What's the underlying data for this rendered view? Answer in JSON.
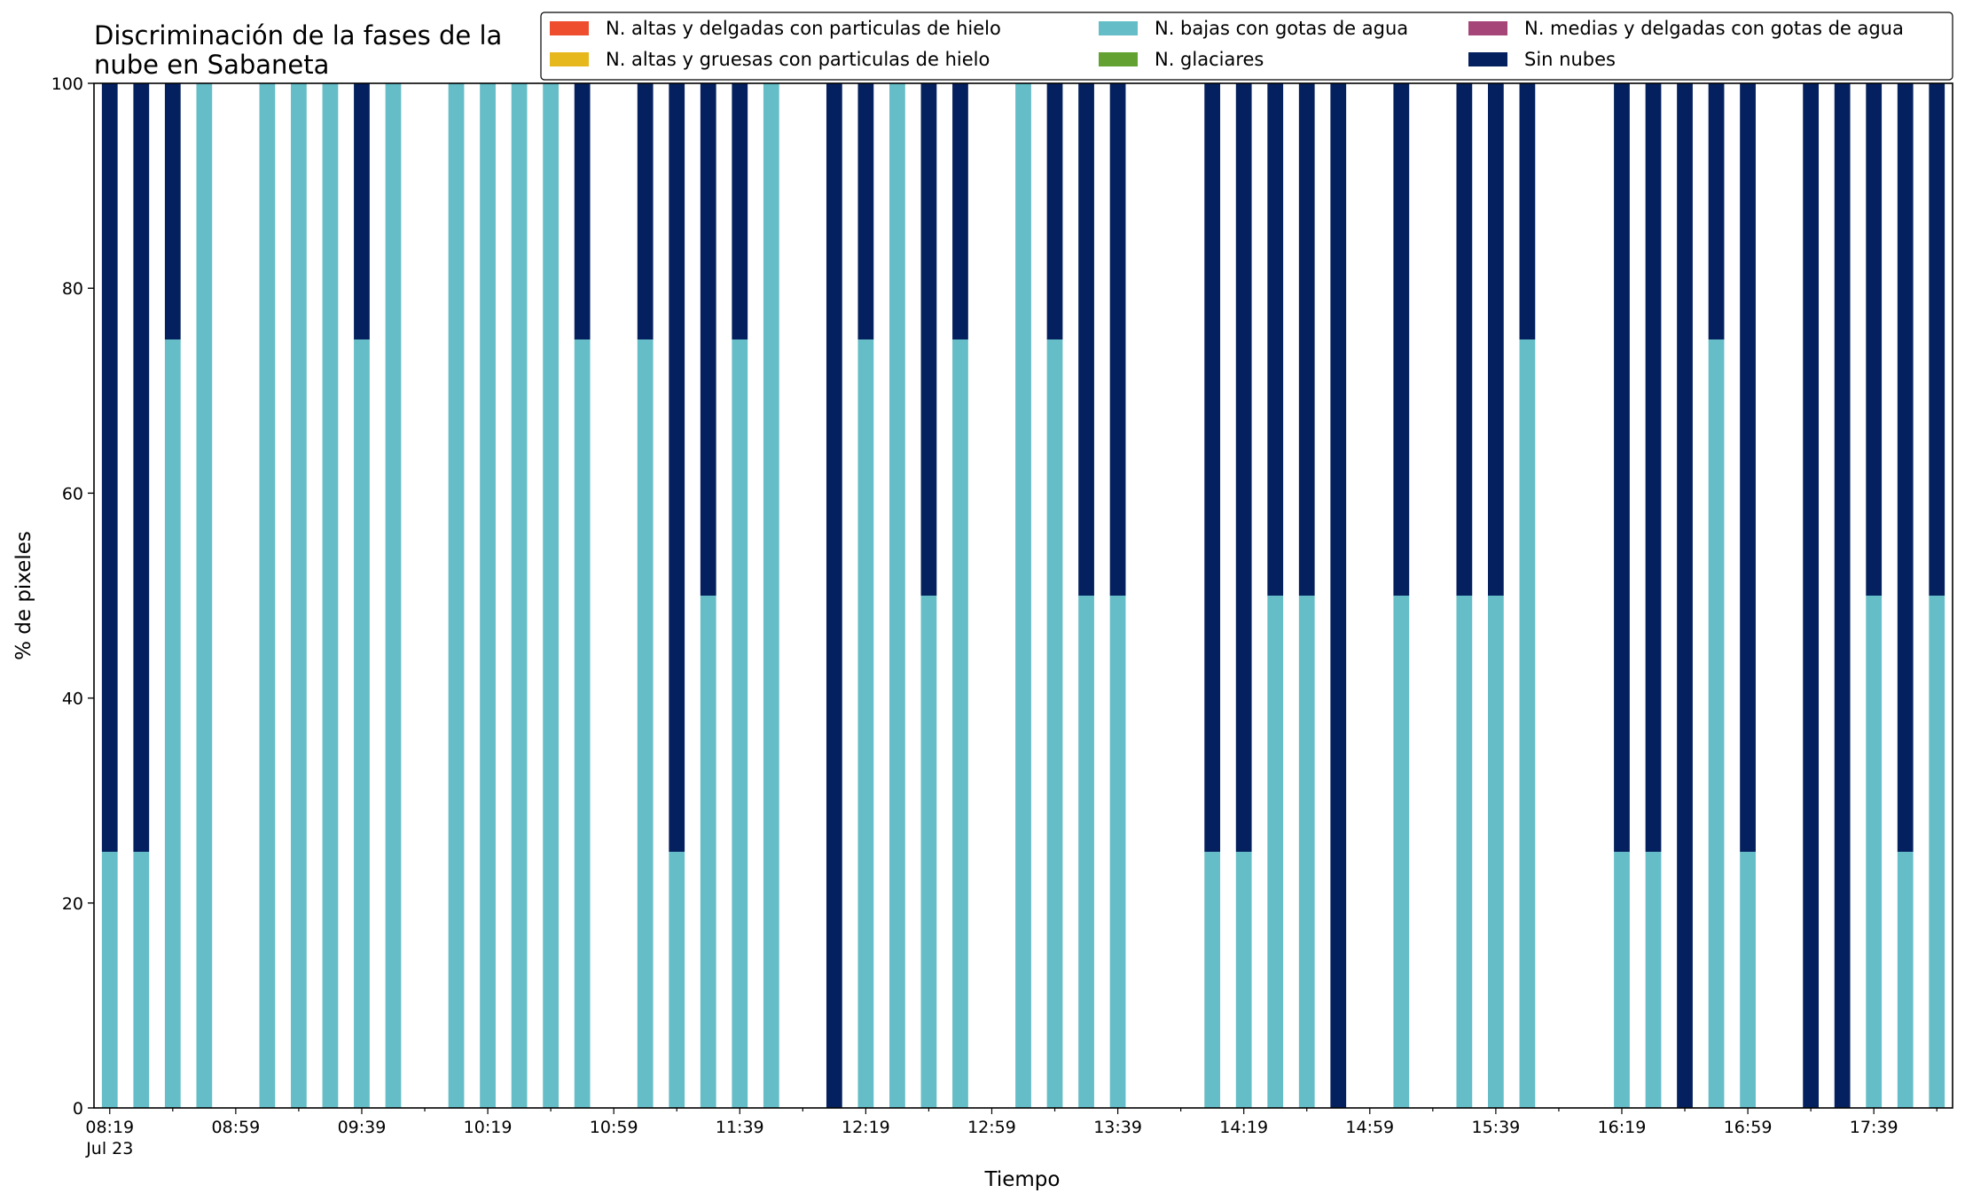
{
  "chart_data": {
    "type": "bar",
    "stacked": true,
    "title_lines": [
      "Discriminación de la fases de la",
      "nube en Sabaneta"
    ],
    "xlabel": "Tiempo",
    "ylabel": "% de pixeles",
    "ylim": [
      0,
      100
    ],
    "yticks": [
      0,
      20,
      40,
      60,
      80,
      100
    ],
    "grid": false,
    "legend_position": "top-right",
    "x_start": "08:19",
    "x_end": "17:59",
    "x_step_minutes": 10,
    "xtick_labels": [
      "08:19",
      "08:59",
      "09:39",
      "10:19",
      "10:59",
      "11:39",
      "12:19",
      "12:59",
      "13:39",
      "14:19",
      "14:59",
      "15:39",
      "16:19",
      "16:59",
      "17:39"
    ],
    "xtick_sublabel": "Jul 23",
    "times": [
      "08:19",
      "08:29",
      "08:39",
      "08:49",
      "08:59",
      "09:09",
      "09:19",
      "09:29",
      "09:39",
      "09:49",
      "09:59",
      "10:09",
      "10:19",
      "10:29",
      "10:39",
      "10:49",
      "10:59",
      "11:09",
      "11:19",
      "11:29",
      "11:39",
      "11:49",
      "11:59",
      "12:09",
      "12:19",
      "12:29",
      "12:39",
      "12:49",
      "12:59",
      "13:09",
      "13:19",
      "13:29",
      "13:39",
      "13:49",
      "13:59",
      "14:09",
      "14:19",
      "14:29",
      "14:39",
      "14:49",
      "14:59",
      "15:09",
      "15:19",
      "15:29",
      "15:39",
      "15:49",
      "15:59",
      "16:09",
      "16:19",
      "16:29",
      "16:39",
      "16:49",
      "16:59",
      "17:09",
      "17:19",
      "17:29",
      "17:39",
      "17:49",
      "17:59"
    ],
    "series": [
      {
        "name": "N. altas y delgadas con particulas de hielo",
        "color": "#ee4e2e",
        "values": [
          0,
          0,
          0,
          0,
          0,
          0,
          0,
          0,
          0,
          0,
          0,
          0,
          0,
          0,
          0,
          0,
          0,
          0,
          0,
          0,
          0,
          0,
          0,
          0,
          0,
          0,
          0,
          0,
          0,
          0,
          0,
          0,
          0,
          0,
          0,
          0,
          0,
          0,
          0,
          0,
          0,
          0,
          0,
          0,
          0,
          0,
          0,
          0,
          0,
          0,
          0,
          0,
          0,
          0,
          0,
          0,
          0,
          0,
          0
        ]
      },
      {
        "name": "N. altas y gruesas con particulas de hielo",
        "color": "#e7b81d",
        "values": [
          0,
          0,
          0,
          0,
          0,
          0,
          0,
          0,
          0,
          0,
          0,
          0,
          0,
          0,
          0,
          0,
          0,
          0,
          0,
          0,
          0,
          0,
          0,
          0,
          0,
          0,
          0,
          0,
          0,
          0,
          0,
          0,
          0,
          0,
          0,
          0,
          0,
          0,
          0,
          0,
          0,
          0,
          0,
          0,
          0,
          0,
          0,
          0,
          0,
          0,
          0,
          0,
          0,
          0,
          0,
          0,
          0,
          0,
          0
        ]
      },
      {
        "name": "N. bajas con gotas de agua",
        "color": "#65bdc7",
        "values": [
          25,
          25,
          75,
          100,
          0,
          100,
          100,
          100,
          75,
          100,
          0,
          100,
          100,
          100,
          100,
          75,
          0,
          75,
          25,
          50,
          75,
          100,
          0,
          0,
          75,
          100,
          50,
          75,
          0,
          100,
          75,
          50,
          50,
          0,
          0,
          25,
          25,
          50,
          50,
          0,
          0,
          50,
          0,
          50,
          50,
          75,
          0,
          0,
          25,
          25,
          0,
          75,
          25,
          0,
          0,
          0,
          50,
          25,
          50
        ]
      },
      {
        "name": "N. glaciares",
        "color": "#62a132",
        "values": [
          0,
          0,
          0,
          0,
          0,
          0,
          0,
          0,
          0,
          0,
          0,
          0,
          0,
          0,
          0,
          0,
          0,
          0,
          0,
          0,
          0,
          0,
          0,
          0,
          0,
          0,
          0,
          0,
          0,
          0,
          0,
          0,
          0,
          0,
          0,
          0,
          0,
          0,
          0,
          0,
          0,
          0,
          0,
          0,
          0,
          0,
          0,
          0,
          0,
          0,
          0,
          0,
          0,
          0,
          0,
          0,
          0,
          0,
          0
        ]
      },
      {
        "name": "N. medias y delgadas con gotas de agua",
        "color": "#a64578",
        "values": [
          0,
          0,
          0,
          0,
          0,
          0,
          0,
          0,
          0,
          0,
          0,
          0,
          0,
          0,
          0,
          0,
          0,
          0,
          0,
          0,
          0,
          0,
          0,
          0,
          0,
          0,
          0,
          0,
          0,
          0,
          0,
          0,
          0,
          0,
          0,
          0,
          0,
          0,
          0,
          0,
          0,
          0,
          0,
          0,
          0,
          0,
          0,
          0,
          0,
          0,
          0,
          0,
          0,
          0,
          0,
          0,
          0,
          0,
          0
        ]
      },
      {
        "name": "Sin nubes",
        "color": "#04205e",
        "values": [
          75,
          75,
          25,
          0,
          0,
          0,
          0,
          0,
          25,
          0,
          0,
          0,
          0,
          0,
          0,
          25,
          0,
          25,
          75,
          50,
          25,
          0,
          0,
          100,
          25,
          0,
          50,
          25,
          0,
          0,
          25,
          50,
          50,
          0,
          0,
          75,
          75,
          50,
          50,
          100,
          0,
          50,
          0,
          50,
          50,
          25,
          0,
          0,
          75,
          75,
          100,
          25,
          75,
          0,
          100,
          100,
          50,
          75,
          50
        ]
      }
    ]
  }
}
